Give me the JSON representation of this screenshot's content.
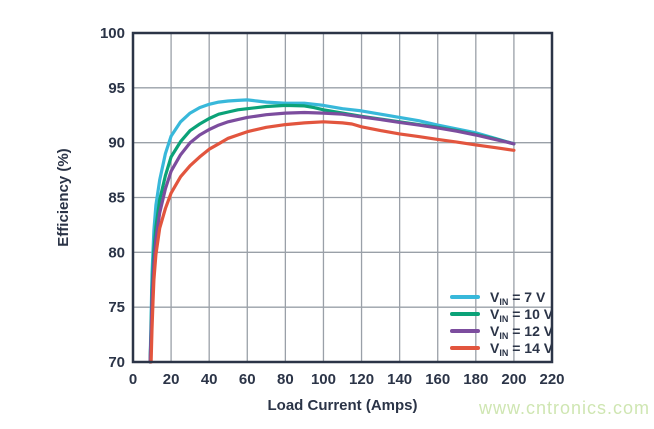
{
  "watermark": {
    "text": "www.cntronics.com",
    "color": "#cfe6b2"
  },
  "colors": {
    "frame": "#2b3447",
    "grid": "#9aa0a8",
    "text": "#2b3447",
    "background": "#ffffff"
  },
  "chart_data": {
    "type": "line",
    "title": "",
    "xlabel": "Load Current (Amps)",
    "ylabel": "Efficiency (%)",
    "xlim": [
      0,
      220
    ],
    "ylim": [
      70,
      100
    ],
    "xticks": [
      0,
      20,
      40,
      60,
      80,
      100,
      120,
      140,
      160,
      180,
      200,
      220
    ],
    "yticks": [
      70,
      75,
      80,
      85,
      90,
      95,
      100
    ],
    "grid": true,
    "legend_position": "lower right",
    "series": [
      {
        "name": "VIN = 7 V",
        "label": {
          "prefix": "V",
          "sub": "IN",
          "suffix": " = 7 V"
        },
        "color": "#38b8da",
        "points": [
          [
            9,
            70
          ],
          [
            9.5,
            74
          ],
          [
            10,
            78
          ],
          [
            11,
            82
          ],
          [
            12,
            84.3
          ],
          [
            14,
            86.6
          ],
          [
            17,
            89.0
          ],
          [
            20,
            90.6
          ],
          [
            25,
            91.9
          ],
          [
            30,
            92.7
          ],
          [
            35,
            93.2
          ],
          [
            40,
            93.5
          ],
          [
            45,
            93.7
          ],
          [
            50,
            93.8
          ],
          [
            55,
            93.85
          ],
          [
            60,
            93.9
          ],
          [
            65,
            93.8
          ],
          [
            70,
            93.7
          ],
          [
            80,
            93.6
          ],
          [
            90,
            93.6
          ],
          [
            100,
            93.4
          ],
          [
            110,
            93.1
          ],
          [
            120,
            92.9
          ],
          [
            130,
            92.6
          ],
          [
            140,
            92.3
          ],
          [
            150,
            92.0
          ],
          [
            160,
            91.6
          ],
          [
            170,
            91.25
          ],
          [
            180,
            90.9
          ],
          [
            190,
            90.4
          ],
          [
            200,
            89.9
          ]
        ]
      },
      {
        "name": "VIN = 10 V",
        "label": {
          "prefix": "V",
          "sub": "IN",
          "suffix": " = 10 V"
        },
        "color": "#0ba278",
        "points": [
          [
            9,
            70
          ],
          [
            9.5,
            73
          ],
          [
            10,
            76.5
          ],
          [
            11,
            80.2
          ],
          [
            12,
            82.3
          ],
          [
            14,
            84.8
          ],
          [
            17,
            87.0
          ],
          [
            20,
            88.7
          ],
          [
            25,
            90.1
          ],
          [
            30,
            91.1
          ],
          [
            35,
            91.7
          ],
          [
            40,
            92.2
          ],
          [
            45,
            92.6
          ],
          [
            50,
            92.8
          ],
          [
            55,
            93.0
          ],
          [
            60,
            93.1
          ],
          [
            70,
            93.3
          ],
          [
            80,
            93.4
          ],
          [
            90,
            93.35
          ],
          [
            95,
            93.2
          ],
          [
            100,
            93.0
          ],
          [
            110,
            92.7
          ],
          [
            120,
            92.4
          ],
          [
            130,
            92.15
          ],
          [
            140,
            91.9
          ],
          [
            150,
            91.65
          ],
          [
            160,
            91.4
          ],
          [
            170,
            91.1
          ],
          [
            180,
            90.75
          ],
          [
            190,
            90.35
          ],
          [
            200,
            89.9
          ]
        ]
      },
      {
        "name": "VIN = 12 V",
        "label": {
          "prefix": "V",
          "sub": "IN",
          "suffix": " = 12 V"
        },
        "color": "#7c4d9e",
        "points": [
          [
            9,
            70
          ],
          [
            9.5,
            72.5
          ],
          [
            10,
            75.5
          ],
          [
            11,
            79.0
          ],
          [
            12,
            81.2
          ],
          [
            14,
            83.6
          ],
          [
            17,
            85.8
          ],
          [
            20,
            87.4
          ],
          [
            25,
            88.9
          ],
          [
            30,
            90.0
          ],
          [
            35,
            90.7
          ],
          [
            40,
            91.2
          ],
          [
            45,
            91.6
          ],
          [
            50,
            91.9
          ],
          [
            55,
            92.1
          ],
          [
            60,
            92.3
          ],
          [
            70,
            92.55
          ],
          [
            80,
            92.7
          ],
          [
            90,
            92.75
          ],
          [
            100,
            92.7
          ],
          [
            110,
            92.6
          ],
          [
            120,
            92.35
          ],
          [
            130,
            92.1
          ],
          [
            140,
            91.85
          ],
          [
            150,
            91.6
          ],
          [
            160,
            91.35
          ],
          [
            170,
            91.05
          ],
          [
            180,
            90.7
          ],
          [
            190,
            90.3
          ],
          [
            200,
            89.9
          ]
        ]
      },
      {
        "name": "VIN = 14 V",
        "label": {
          "prefix": "V",
          "sub": "IN",
          "suffix": " = 14 V"
        },
        "color": "#e2553e",
        "points": [
          [
            9.5,
            70
          ],
          [
            10,
            73
          ],
          [
            10.5,
            75.5
          ],
          [
            11,
            77.5
          ],
          [
            12,
            79.8
          ],
          [
            14,
            82.2
          ],
          [
            17,
            84.0
          ],
          [
            20,
            85.4
          ],
          [
            25,
            86.9
          ],
          [
            30,
            87.9
          ],
          [
            35,
            88.7
          ],
          [
            40,
            89.4
          ],
          [
            45,
            89.9
          ],
          [
            50,
            90.4
          ],
          [
            55,
            90.7
          ],
          [
            60,
            91.0
          ],
          [
            70,
            91.4
          ],
          [
            80,
            91.65
          ],
          [
            90,
            91.8
          ],
          [
            100,
            91.9
          ],
          [
            110,
            91.8
          ],
          [
            115,
            91.7
          ],
          [
            120,
            91.45
          ],
          [
            130,
            91.1
          ],
          [
            140,
            90.8
          ],
          [
            150,
            90.55
          ],
          [
            160,
            90.3
          ],
          [
            170,
            90.05
          ],
          [
            180,
            89.8
          ],
          [
            190,
            89.55
          ],
          [
            200,
            89.3
          ]
        ]
      }
    ]
  }
}
